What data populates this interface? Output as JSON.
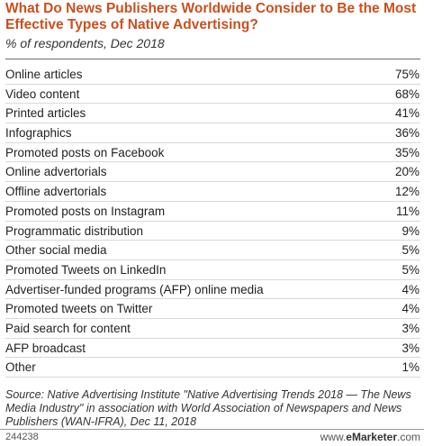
{
  "chart_data": {
    "type": "table",
    "title": "What Do News Publishers Worldwide Consider to Be the Most Effective Types of Native Advertising?",
    "subtitle": "% of respondents, Dec 2018",
    "categories": [
      "Online articles",
      "Video content",
      "Printed articles",
      "Infographics",
      "Promoted posts on Facebook",
      "Online advertorials",
      "Offline advertorials",
      "Promoted posts on Instagram",
      "Programmatic distribution",
      "Other social media",
      "Promoted Tweets on LinkedIn",
      "Advertiser-funded programs (AFP) online media",
      "Promoted tweets on Twitter",
      "Paid search for content",
      "AFP broadcast",
      "Other"
    ],
    "values": [
      75,
      68,
      41,
      36,
      35,
      20,
      12,
      11,
      9,
      5,
      5,
      4,
      4,
      3,
      3,
      1
    ],
    "value_labels": [
      "75%",
      "68%",
      "41%",
      "36%",
      "35%",
      "20%",
      "12%",
      "11%",
      "9%",
      "5%",
      "5%",
      "4%",
      "4%",
      "3%",
      "3%",
      "1%"
    ],
    "source": "Source: Native Advertising Institute \"Native Advertising Trends 2018 — The News Media Industry\" in association with World Association of Newspapers and News Publishers (WAN-IFRA), Dec 11, 2018"
  },
  "footer": {
    "chart_id": "244238",
    "brand_prefix": "www.",
    "brand_name": "eMarketer",
    "brand_suffix": ".com"
  },
  "colors": {
    "title": "#c8501e",
    "rule": "#d9d9d9"
  }
}
